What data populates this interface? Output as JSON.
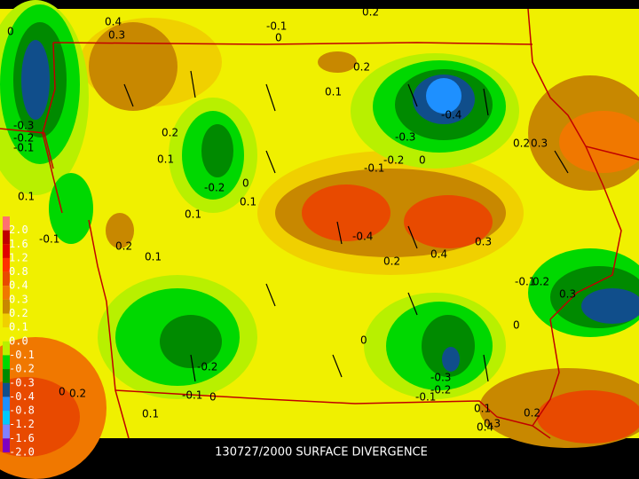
{
  "caption": "130727/2000 SURFACE DIVERGENCE",
  "legend": [
    {
      "label": "2.0",
      "color": "#ff7070"
    },
    {
      "label": "1.6",
      "color": "#c00000"
    },
    {
      "label": "1.2",
      "color": "#e00000"
    },
    {
      "label": "0.8",
      "color": "#ff3000"
    },
    {
      "label": "0.4",
      "color": "#e84a00"
    },
    {
      "label": "0.3",
      "color": "#f07800"
    },
    {
      "label": "0.2",
      "color": "#c88800"
    },
    {
      "label": "0.1",
      "color": "#f0d000"
    },
    {
      "label": "0.0",
      "color": "#f0f000"
    },
    {
      "label": "-0.1",
      "color": "#b8f000"
    },
    {
      "label": "-0.2",
      "color": "#00d800"
    },
    {
      "label": "-0.3",
      "color": "#008a00"
    },
    {
      "label": "-0.4",
      "color": "#104e8b"
    },
    {
      "label": "-0.8",
      "color": "#1e90ff"
    },
    {
      "label": "-1.2",
      "color": "#00c8ff"
    },
    {
      "label": "-1.6",
      "color": "#8080ff"
    },
    {
      "label": "-2.0",
      "color": "#8000c0"
    }
  ],
  "contour_labels": [
    "0.4",
    "0.3",
    "0",
    "0.2",
    "-0.1",
    "0",
    "0.2",
    "0.1",
    "-0.4",
    "-0.3",
    "0.2",
    "0.1",
    "-0.2",
    "0",
    "0.1",
    "0.1",
    "-0.1",
    "-0.2",
    "0",
    "0.2",
    "0.3",
    "-0.3",
    "-0.2",
    "-0.1",
    "0.1",
    "-0.1",
    "0.2",
    "0.1",
    "-0.4",
    "0.2",
    "0.4",
    "0.3",
    "-0.1",
    "0.2",
    "0.3",
    "0",
    "0",
    "-0.2",
    "-0.1",
    "0",
    "-0.3",
    "-0.2",
    "-0.1",
    "0.1",
    "0",
    "0.2",
    "0.1",
    "0.2",
    "0.3",
    "0.4"
  ]
}
